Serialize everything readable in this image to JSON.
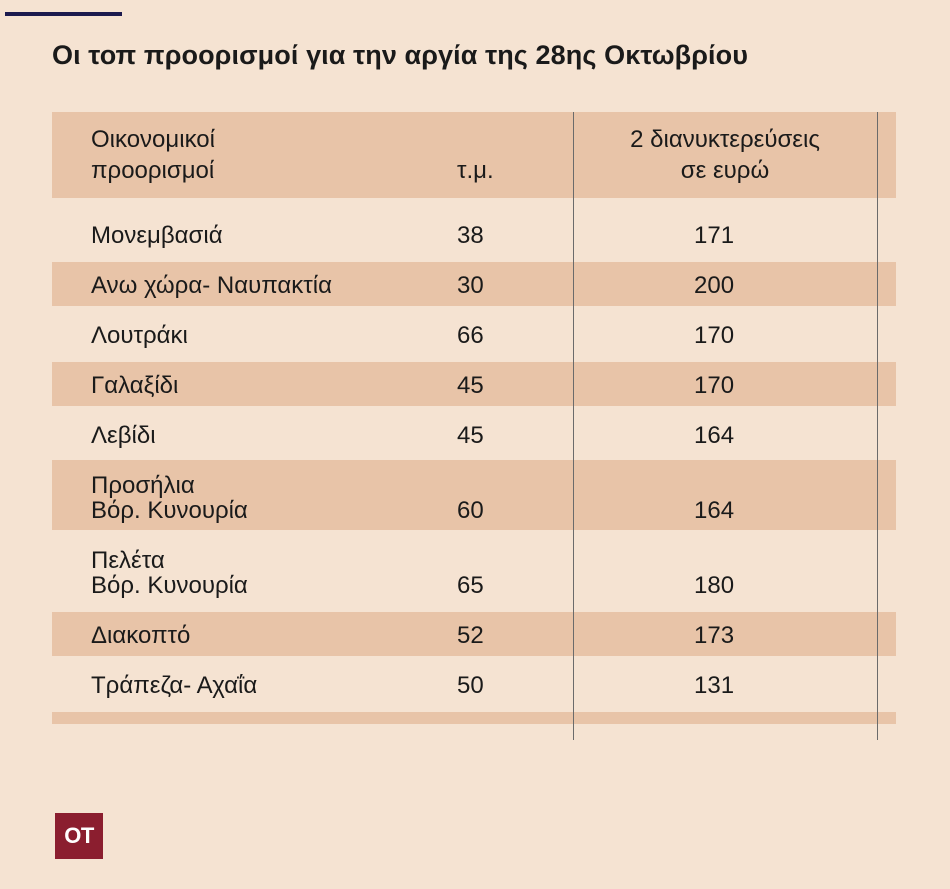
{
  "title": "Οι τοπ προορισμοί για την αργία της 28ης Οκτωβρίου",
  "logo": "OT",
  "colors": {
    "background": "#f5e3d2",
    "band": "#e8c4a8",
    "accent_line": "#1c1a4e",
    "logo_bg": "#8b1e2f"
  },
  "chart_data": {
    "type": "table",
    "title": "Οι τοπ προορισμοί για την αργία της 28ης Οκτωβρίου",
    "columns": [
      [
        "Οικονομικοί",
        "προορισμοί"
      ],
      [
        "τ.μ."
      ],
      [
        "2 διανυκτερεύσεις",
        "σε ευρώ"
      ]
    ],
    "rows": [
      {
        "destination": [
          "Μονεμβασιά"
        ],
        "sqm": "38",
        "price": "171"
      },
      {
        "destination": [
          "Ανω χώρα- Ναυπακτία"
        ],
        "sqm": "30",
        "price": "200"
      },
      {
        "destination": [
          "Λουτράκι"
        ],
        "sqm": "66",
        "price": "170"
      },
      {
        "destination": [
          "Γαλαξίδι"
        ],
        "sqm": "45",
        "price": "170"
      },
      {
        "destination": [
          "Λεβίδι"
        ],
        "sqm": "45",
        "price": "164"
      },
      {
        "destination": [
          "Προσήλια",
          "Βόρ. Κυνουρία"
        ],
        "sqm": "60",
        "price": "164"
      },
      {
        "destination": [
          "Πελέτα",
          "Βόρ. Κυνουρία"
        ],
        "sqm": "65",
        "price": "180"
      },
      {
        "destination": [
          "Διακοπτό"
        ],
        "sqm": "52",
        "price": "173"
      },
      {
        "destination": [
          "Τράπεζα- Αχαΐα"
        ],
        "sqm": "50",
        "price": "131"
      }
    ]
  }
}
